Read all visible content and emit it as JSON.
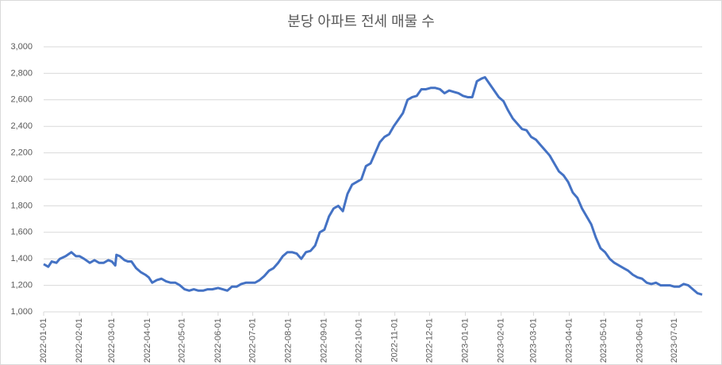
{
  "chart_data": {
    "type": "line",
    "title": "분당 아파트 전세 매물 수",
    "x": [
      "2022-01-01",
      "2022-01-05",
      "2022-01-08",
      "2022-01-12",
      "2022-01-15",
      "2022-01-20",
      "2022-01-25",
      "2022-01-29",
      "2022-02-01",
      "2022-02-05",
      "2022-02-10",
      "2022-02-14",
      "2022-02-18",
      "2022-02-22",
      "2022-02-26",
      "2022-03-01",
      "2022-03-04",
      "2022-03-05",
      "2022-03-08",
      "2022-03-12",
      "2022-03-15",
      "2022-03-18",
      "2022-03-22",
      "2022-03-26",
      "2022-03-30",
      "2022-04-02",
      "2022-04-05",
      "2022-04-09",
      "2022-04-13",
      "2022-04-17",
      "2022-04-21",
      "2022-04-25",
      "2022-04-29",
      "2022-05-03",
      "2022-05-07",
      "2022-05-11",
      "2022-05-15",
      "2022-05-19",
      "2022-05-23",
      "2022-05-27",
      "2022-06-01",
      "2022-06-05",
      "2022-06-09",
      "2022-06-13",
      "2022-06-17",
      "2022-06-21",
      "2022-06-25",
      "2022-06-29",
      "2022-07-03",
      "2022-07-07",
      "2022-07-11",
      "2022-07-15",
      "2022-07-19",
      "2022-07-23",
      "2022-07-27",
      "2022-07-31",
      "2022-08-04",
      "2022-08-08",
      "2022-08-12",
      "2022-08-16",
      "2022-08-20",
      "2022-08-24",
      "2022-08-28",
      "2022-09-01",
      "2022-09-05",
      "2022-09-09",
      "2022-09-13",
      "2022-09-17",
      "2022-09-21",
      "2022-09-25",
      "2022-09-29",
      "2022-10-03",
      "2022-10-07",
      "2022-10-11",
      "2022-10-15",
      "2022-10-19",
      "2022-10-23",
      "2022-10-27",
      "2022-10-31",
      "2022-11-04",
      "2022-11-08",
      "2022-11-12",
      "2022-11-16",
      "2022-11-20",
      "2022-11-24",
      "2022-11-28",
      "2022-12-02",
      "2022-12-06",
      "2022-12-10",
      "2022-12-14",
      "2022-12-18",
      "2022-12-22",
      "2022-12-26",
      "2022-12-30",
      "2023-01-03",
      "2023-01-07",
      "2023-01-11",
      "2023-01-15",
      "2023-01-18",
      "2023-01-22",
      "2023-01-26",
      "2023-01-30",
      "2023-02-03",
      "2023-02-07",
      "2023-02-11",
      "2023-02-15",
      "2023-02-19",
      "2023-02-23",
      "2023-02-27",
      "2023-03-03",
      "2023-03-07",
      "2023-03-11",
      "2023-03-15",
      "2023-03-19",
      "2023-03-23",
      "2023-03-27",
      "2023-03-31",
      "2023-04-04",
      "2023-04-08",
      "2023-04-12",
      "2023-04-16",
      "2023-04-20",
      "2023-04-24",
      "2023-04-28",
      "2023-05-02",
      "2023-05-06",
      "2023-05-10",
      "2023-05-14",
      "2023-05-18",
      "2023-05-22",
      "2023-05-26",
      "2023-05-30",
      "2023-06-03",
      "2023-06-07",
      "2023-06-11",
      "2023-06-15",
      "2023-06-19",
      "2023-06-23",
      "2023-06-27",
      "2023-07-01",
      "2023-07-05",
      "2023-07-09",
      "2023-07-13",
      "2023-07-17",
      "2023-07-21",
      "2023-07-25"
    ],
    "series": [
      {
        "color": "#4472c4",
        "values": [
          1360,
          1340,
          1380,
          1370,
          1400,
          1420,
          1450,
          1420,
          1420,
          1400,
          1370,
          1390,
          1370,
          1370,
          1390,
          1380,
          1350,
          1430,
          1420,
          1390,
          1380,
          1380,
          1330,
          1300,
          1280,
          1260,
          1220,
          1240,
          1250,
          1230,
          1220,
          1220,
          1200,
          1170,
          1160,
          1170,
          1160,
          1160,
          1170,
          1170,
          1180,
          1170,
          1160,
          1190,
          1190,
          1210,
          1220,
          1220,
          1220,
          1240,
          1270,
          1310,
          1330,
          1370,
          1420,
          1450,
          1450,
          1440,
          1400,
          1450,
          1460,
          1500,
          1600,
          1620,
          1720,
          1780,
          1800,
          1760,
          1890,
          1960,
          1980,
          2000,
          2100,
          2120,
          2200,
          2280,
          2320,
          2340,
          2400,
          2450,
          2500,
          2600,
          2620,
          2630,
          2680,
          2680,
          2690,
          2690,
          2680,
          2650,
          2670,
          2660,
          2650,
          2630,
          2620,
          2620,
          2740,
          2760,
          2770,
          2720,
          2670,
          2620,
          2590,
          2520,
          2460,
          2420,
          2380,
          2370,
          2320,
          2300,
          2260,
          2220,
          2180,
          2120,
          2060,
          2030,
          1980,
          1900,
          1860,
          1780,
          1720,
          1660,
          1560,
          1480,
          1450,
          1400,
          1370,
          1350,
          1330,
          1310,
          1280,
          1260,
          1250,
          1220,
          1210,
          1220,
          1200,
          1200,
          1200,
          1190,
          1190,
          1210,
          1200,
          1170,
          1140,
          1130
        ]
      }
    ],
    "xlim": [
      "2022-01-01",
      "2023-07-25"
    ],
    "xticks": [
      "2022-01-01",
      "2022-02-01",
      "2022-03-01",
      "2022-04-01",
      "2022-05-01",
      "2022-06-01",
      "2022-07-01",
      "2022-08-01",
      "2022-09-01",
      "2022-10-01",
      "2022-11-01",
      "2022-12-01",
      "2023-01-01",
      "2023-02-01",
      "2023-03-01",
      "2023-04-01",
      "2023-05-01",
      "2023-06-01",
      "2023-07-01"
    ],
    "ylim": [
      1000,
      3000
    ],
    "yticks": [
      {
        "value": 1000,
        "label": "1,000"
      },
      {
        "value": 1200,
        "label": "1,200"
      },
      {
        "value": 1400,
        "label": "1,400"
      },
      {
        "value": 1600,
        "label": "1,600"
      },
      {
        "value": 1800,
        "label": "1,800"
      },
      {
        "value": 2000,
        "label": "2,000"
      },
      {
        "value": 2200,
        "label": "2,200"
      },
      {
        "value": 2400,
        "label": "2,400"
      },
      {
        "value": 2600,
        "label": "2,600"
      },
      {
        "value": 2800,
        "label": "2,800"
      },
      {
        "value": 3000,
        "label": "3,000"
      }
    ],
    "grid": true
  }
}
